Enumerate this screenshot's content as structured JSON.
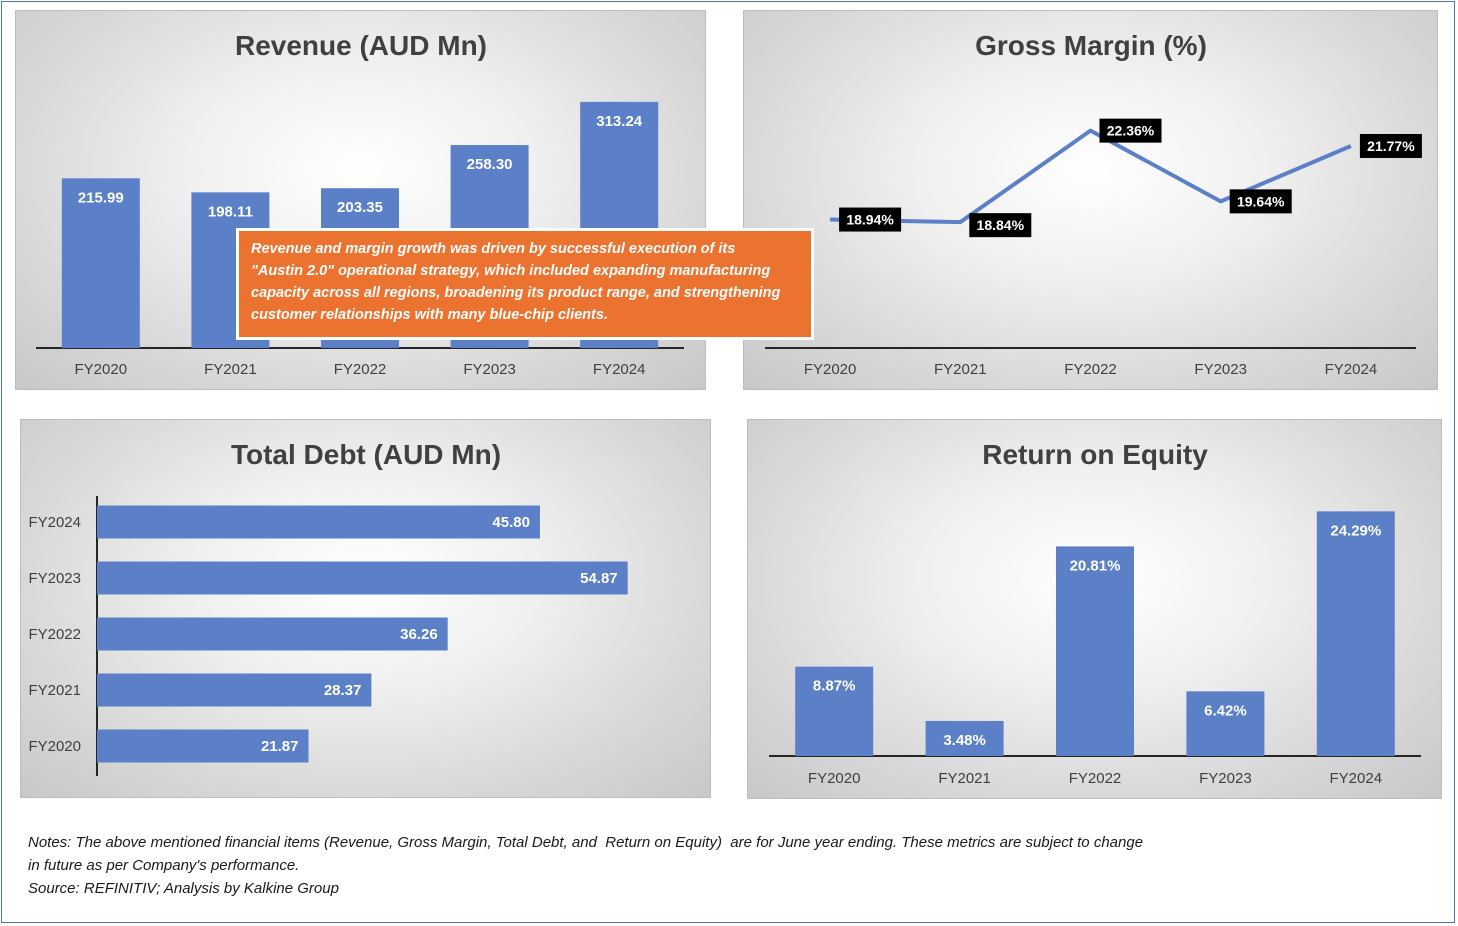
{
  "chart_data": [
    {
      "type": "bar",
      "title": "Revenue (AUD Mn)",
      "categories": [
        "FY2020",
        "FY2021",
        "FY2022",
        "FY2023",
        "FY2024"
      ],
      "values": [
        215.99,
        198.11,
        203.35,
        258.3,
        313.24
      ],
      "labels": [
        "215.99",
        "198.11",
        "203.35",
        "258.30",
        "313.24"
      ],
      "ylim": [
        0,
        350
      ],
      "xlabel": "",
      "ylabel": "",
      "grid": false
    },
    {
      "type": "line",
      "title": "Gross Margin (%)",
      "categories": [
        "FY2020",
        "FY2021",
        "FY2022",
        "FY2023",
        "FY2024"
      ],
      "values": [
        18.94,
        18.84,
        22.36,
        19.64,
        21.77
      ],
      "labels": [
        "18.94%",
        "18.84%",
        "22.36%",
        "19.64%",
        "21.77%"
      ],
      "ylim": [
        14,
        23
      ],
      "xlabel": "",
      "ylabel": "",
      "grid": false
    },
    {
      "type": "bar",
      "orientation": "horizontal",
      "title": "Total Debt (AUD Mn)",
      "categories": [
        "FY2024",
        "FY2023",
        "FY2022",
        "FY2021",
        "FY2020"
      ],
      "values": [
        45.8,
        54.87,
        36.26,
        28.37,
        21.87
      ],
      "labels": [
        "45.80",
        "54.87",
        "36.26",
        "28.37",
        "21.87"
      ],
      "xlim": [
        0,
        70
      ],
      "xlabel": "",
      "ylabel": "",
      "grid": false
    },
    {
      "type": "bar",
      "title": "Return on Equity",
      "categories": [
        "FY2020",
        "FY2021",
        "FY2022",
        "FY2023",
        "FY2024"
      ],
      "values": [
        8.87,
        3.48,
        20.81,
        6.42,
        24.29
      ],
      "labels": [
        "8.87%",
        "3.48%",
        "20.81%",
        "6.42%",
        "24.29%"
      ],
      "ylim": [
        0,
        28
      ],
      "xlabel": "",
      "ylabel": "",
      "grid": false
    }
  ],
  "callout": {
    "lines": [
      "Revenue and margin growth was driven by successful execution of its",
      "\"Austin 2.0\" operational strategy, which included expanding manufacturing",
      "capacity across all regions, broadening its product range, and strengthening",
      "customer relationships with many blue-chip clients."
    ]
  },
  "notes": {
    "line1": "Notes: The above mentioned financial items (Revenue, Gross Margin, Total Debt, and  Return on Equity)  are for June year ending. These metrics are subject to change",
    "line2": "in future as per Company's performance.",
    "source": "Source: REFINITIV; Analysis by Kalkine Group"
  },
  "colors": {
    "bar": "#5b80c8",
    "callout": "#ec7230",
    "label_box": "#000000"
  }
}
